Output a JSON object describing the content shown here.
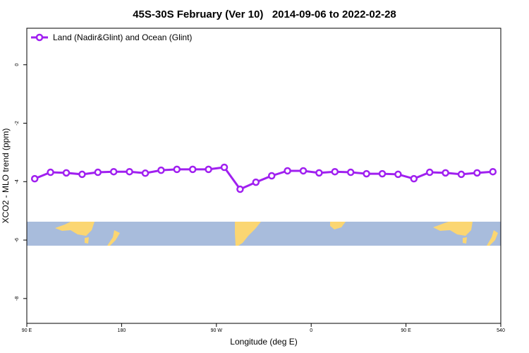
{
  "chart_data": {
    "type": "line",
    "title": "45S-30S February (Ver 10)   2014-09-06 to 2022-02-28",
    "x_label": "Longitude (deg E)",
    "y_label": "XCO2 - MLO trend (ppm)",
    "x": [
      97.5,
      112.5,
      127.5,
      142.5,
      157.5,
      172.5,
      187.5,
      202.5,
      217.5,
      232.5,
      247.5,
      262.5,
      277.5,
      292.5,
      307.5,
      322.5,
      337.5,
      352.5,
      367.5,
      382.5,
      397.5,
      412.5,
      427.5,
      442.5,
      457.5,
      472.5,
      487.5,
      502.5,
      517.5,
      532.5
    ],
    "series": [
      {
        "name": "Land (Nadir&Glint) and Ocean (Glint)",
        "color": "#a020f0",
        "values": [
          -3.9,
          -3.68,
          -3.7,
          -3.75,
          -3.68,
          -3.66,
          -3.66,
          -3.71,
          -3.61,
          -3.58,
          -3.58,
          -3.58,
          -3.51,
          -4.26,
          -4.02,
          -3.8,
          -3.63,
          -3.63,
          -3.7,
          -3.66,
          -3.68,
          -3.73,
          -3.73,
          -3.75,
          -3.9,
          -3.68,
          -3.7,
          -3.75,
          -3.7,
          -3.66
        ]
      }
    ],
    "xlim": [
      90,
      540
    ],
    "xticks": [
      {
        "value": 90,
        "label": "90 E"
      },
      180,
      {
        "value": 270,
        "label": "90 W"
      },
      {
        "value": 360,
        "label": "0"
      },
      {
        "value": 450,
        "label": "90 E"
      },
      540
    ],
    "ylim": [
      -8.85,
      1.25
    ],
    "yticks": [
      0,
      -2,
      -4,
      -6,
      -8
    ],
    "legend": "top-left"
  }
}
